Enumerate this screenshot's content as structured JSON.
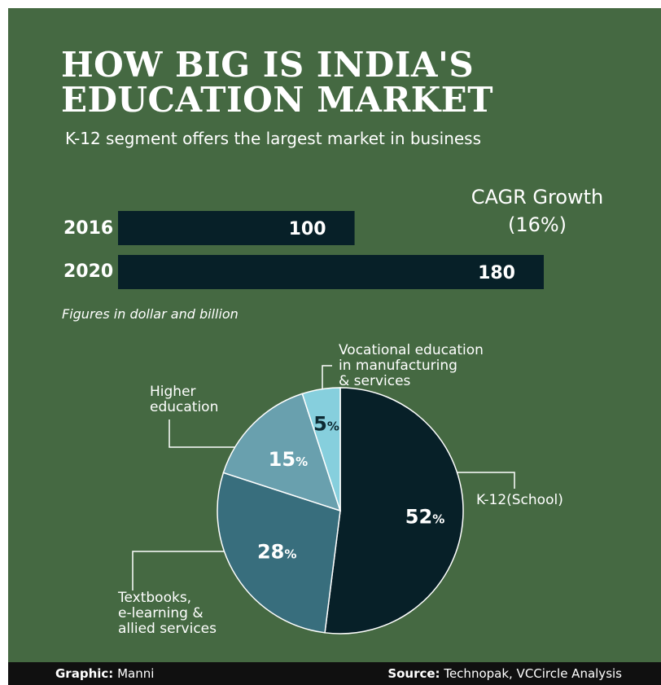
{
  "title_line1": "HOW BIG IS INDIA'S",
  "title_line2": "EDUCATION MARKET",
  "subtitle": "K-12 segment offers the largest market in business",
  "cagr_label": "CAGR Growth",
  "cagr_value": "(16%)",
  "note": "Figures in dollar and billion",
  "footer": {
    "graphic_label": "Graphic:",
    "graphic_value": "Manni",
    "source_label": "Source:",
    "source_value": "Technopak, VCCircle Analysis"
  },
  "colors": {
    "background": "#456942",
    "bar": "#072028",
    "k12": "#072028",
    "textbooks": "#386e7d",
    "higher": "#69a0ae",
    "vocational": "#86cfdd"
  },
  "chart_data": [
    {
      "type": "bar",
      "orientation": "horizontal",
      "categories": [
        "2016",
        "2020"
      ],
      "values": [
        100,
        180
      ],
      "data_labels": [
        "100",
        "180"
      ]
    },
    {
      "type": "pie",
      "slices": [
        {
          "label": "K-12(School)",
          "value": 52,
          "display": "52"
        },
        {
          "label_lines": [
            "Textbooks,",
            "e-learning &",
            "allied services"
          ],
          "value": 28,
          "display": "28"
        },
        {
          "label_lines": [
            "Higher",
            "education"
          ],
          "value": 15,
          "display": "15"
        },
        {
          "label_lines": [
            "Vocational education",
            "in manufacturing",
            "& services"
          ],
          "value": 5,
          "display": "5"
        }
      ],
      "percent_sign": "%"
    }
  ]
}
